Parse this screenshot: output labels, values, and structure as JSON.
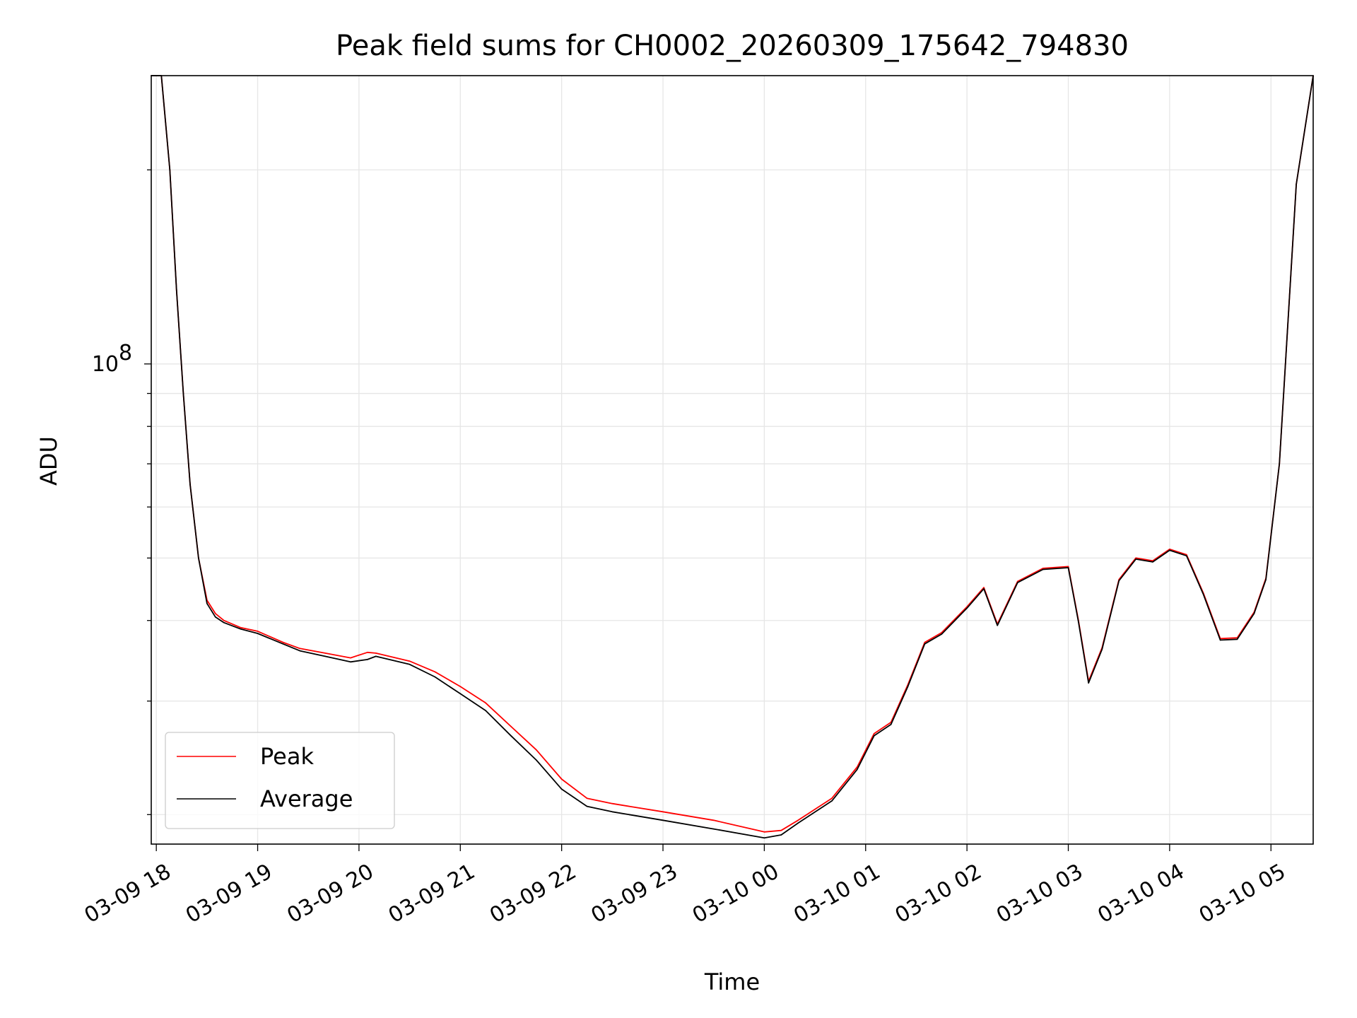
{
  "chart_data": {
    "type": "line",
    "title": "Peak field sums for CH0002_20260309_175642_794830",
    "xlabel": "Time",
    "ylabel": "ADU",
    "yscale": "log",
    "xlim": [
      "2026-03-09 17:57",
      "2026-03-10 05:25"
    ],
    "ylim": [
      18000000,
      280000000
    ],
    "grid": true,
    "legend_position": "lower-left",
    "x_ticks": [
      "2026-03-09 18:00",
      "2026-03-09 19:00",
      "2026-03-09 20:00",
      "2026-03-09 21:00",
      "2026-03-09 22:00",
      "2026-03-09 23:00",
      "2026-03-10 00:00",
      "2026-03-10 01:00",
      "2026-03-10 02:00",
      "2026-03-10 03:00",
      "2026-03-10 04:00",
      "2026-03-10 05:00"
    ],
    "x_tick_labels": [
      "03-09 18",
      "03-09 19",
      "03-09 20",
      "03-09 21",
      "03-09 22",
      "03-09 23",
      "03-10 00",
      "03-10 01",
      "03-10 02",
      "03-10 03",
      "03-10 04",
      "03-10 05"
    ],
    "y_major_ticks": [
      100000000
    ],
    "y_tick_labels": [
      "10",
      "8"
    ],
    "y_minor_ticks": [
      20000000,
      30000000,
      40000000,
      50000000,
      60000000,
      70000000,
      80000000,
      90000000,
      200000000
    ],
    "series": [
      {
        "name": "Peak",
        "color": "#ff0000",
        "x": [
          "2026-03-09 17:57",
          "2026-03-09 18:03",
          "2026-03-09 18:08",
          "2026-03-09 18:12",
          "2026-03-09 18:16",
          "2026-03-09 18:20",
          "2026-03-09 18:25",
          "2026-03-09 18:30",
          "2026-03-09 18:35",
          "2026-03-09 18:40",
          "2026-03-09 18:50",
          "2026-03-09 19:00",
          "2026-03-09 19:15",
          "2026-03-09 19:25",
          "2026-03-09 19:40",
          "2026-03-09 19:55",
          "2026-03-09 20:05",
          "2026-03-09 20:10",
          "2026-03-09 20:30",
          "2026-03-09 20:45",
          "2026-03-09 21:00",
          "2026-03-09 21:15",
          "2026-03-09 21:30",
          "2026-03-09 21:45",
          "2026-03-09 22:00",
          "2026-03-09 22:15",
          "2026-03-09 22:30",
          "2026-03-09 22:40",
          "2026-03-09 23:00",
          "2026-03-09 23:30",
          "2026-03-10 00:00",
          "2026-03-10 00:10",
          "2026-03-10 00:20",
          "2026-03-10 00:40",
          "2026-03-10 00:55",
          "2026-03-10 01:05",
          "2026-03-10 01:15",
          "2026-03-10 01:25",
          "2026-03-10 01:35",
          "2026-03-10 01:45",
          "2026-03-10 02:00",
          "2026-03-10 02:10",
          "2026-03-10 02:18",
          "2026-03-10 02:30",
          "2026-03-10 02:45",
          "2026-03-10 03:00",
          "2026-03-10 03:06",
          "2026-03-10 03:12",
          "2026-03-10 03:20",
          "2026-03-10 03:30",
          "2026-03-10 03:40",
          "2026-03-10 03:50",
          "2026-03-10 04:00",
          "2026-03-10 04:10",
          "2026-03-10 04:20",
          "2026-03-10 04:30",
          "2026-03-10 04:40",
          "2026-03-10 04:50",
          "2026-03-10 04:57",
          "2026-03-10 05:05",
          "2026-03-10 05:15",
          "2026-03-10 05:25"
        ],
        "values": [
          280000000,
          280000000,
          200000000,
          130000000,
          90000000,
          65000000,
          50000000,
          43000000,
          41000000,
          40000000,
          39000000,
          38500000,
          37000000,
          36200000,
          35600000,
          35000000,
          35700000,
          35600000,
          34600000,
          33300000,
          31600000,
          29800000,
          27400000,
          25200000,
          22700000,
          21200000,
          20800000,
          20600000,
          20200000,
          19600000,
          18800000,
          18900000,
          19600000,
          21200000,
          23700000,
          26700000,
          27800000,
          31800000,
          37000000,
          38300000,
          42000000,
          45000000,
          39500000,
          46000000,
          48200000,
          48500000,
          40000000,
          32200000,
          36300000,
          46300000,
          50000000,
          49500000,
          51600000,
          50600000,
          44100000,
          37500000,
          37600000,
          41200000,
          46500000,
          70000000,
          190000000,
          280000000
        ]
      },
      {
        "name": "Average",
        "color": "#000000",
        "x": [
          "2026-03-09 17:57",
          "2026-03-09 18:03",
          "2026-03-09 18:08",
          "2026-03-09 18:12",
          "2026-03-09 18:16",
          "2026-03-09 18:20",
          "2026-03-09 18:25",
          "2026-03-09 18:30",
          "2026-03-09 18:35",
          "2026-03-09 18:40",
          "2026-03-09 18:50",
          "2026-03-09 19:00",
          "2026-03-09 19:15",
          "2026-03-09 19:25",
          "2026-03-09 19:40",
          "2026-03-09 19:55",
          "2026-03-09 20:05",
          "2026-03-09 20:10",
          "2026-03-09 20:30",
          "2026-03-09 20:45",
          "2026-03-09 21:00",
          "2026-03-09 21:15",
          "2026-03-09 21:30",
          "2026-03-09 21:45",
          "2026-03-09 22:00",
          "2026-03-09 22:15",
          "2026-03-09 22:30",
          "2026-03-09 22:40",
          "2026-03-09 23:00",
          "2026-03-09 23:30",
          "2026-03-10 00:00",
          "2026-03-10 00:10",
          "2026-03-10 00:20",
          "2026-03-10 00:40",
          "2026-03-10 00:55",
          "2026-03-10 01:05",
          "2026-03-10 01:15",
          "2026-03-10 01:25",
          "2026-03-10 01:35",
          "2026-03-10 01:45",
          "2026-03-10 02:00",
          "2026-03-10 02:10",
          "2026-03-10 02:18",
          "2026-03-10 02:30",
          "2026-03-10 02:45",
          "2026-03-10 03:00",
          "2026-03-10 03:06",
          "2026-03-10 03:12",
          "2026-03-10 03:20",
          "2026-03-10 03:30",
          "2026-03-10 03:40",
          "2026-03-10 03:50",
          "2026-03-10 04:00",
          "2026-03-10 04:10",
          "2026-03-10 04:20",
          "2026-03-10 04:30",
          "2026-03-10 04:40",
          "2026-03-10 04:50",
          "2026-03-10 04:57",
          "2026-03-10 05:05",
          "2026-03-10 05:15",
          "2026-03-10 05:25"
        ],
        "values": [
          280000000,
          280000000,
          200000000,
          130000000,
          90000000,
          65000000,
          50000000,
          42500000,
          40500000,
          39700000,
          38800000,
          38200000,
          36800000,
          35900000,
          35200000,
          34500000,
          34800000,
          35200000,
          34200000,
          32700000,
          30800000,
          29000000,
          26500000,
          24300000,
          21900000,
          20600000,
          20200000,
          20000000,
          19600000,
          19000000,
          18400000,
          18600000,
          19400000,
          21000000,
          23500000,
          26500000,
          27600000,
          31600000,
          36800000,
          38100000,
          41800000,
          44800000,
          39300000,
          45800000,
          48000000,
          48300000,
          39800000,
          32000000,
          36100000,
          46100000,
          49800000,
          49300000,
          51400000,
          50400000,
          43900000,
          37300000,
          37400000,
          41000000,
          46300000,
          70000000,
          190000000,
          280000000
        ]
      }
    ]
  }
}
